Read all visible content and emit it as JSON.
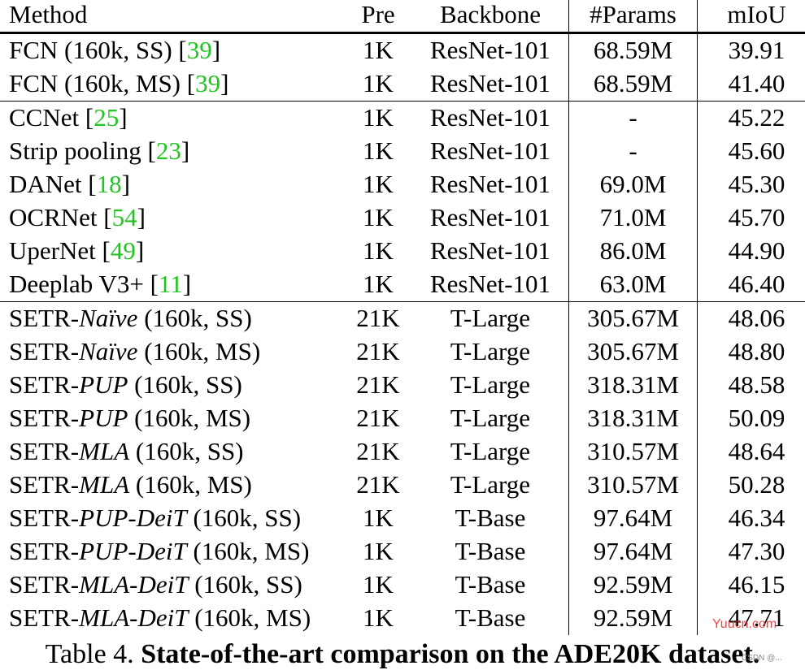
{
  "headers": {
    "method": "Method",
    "pre": "Pre",
    "backbone": "Backbone",
    "params": "#Params",
    "miou": "mIoU"
  },
  "rows": [
    {
      "pre_text": "FCN (160k, SS) [",
      "ital": "",
      "post_text": "",
      "cite": "39",
      "close": "]",
      "pre": "1K",
      "backbone": "ResNet-101",
      "params": "68.59M",
      "miou": "39.91",
      "bold": false,
      "group_start": false
    },
    {
      "pre_text": "FCN (160k, MS) [",
      "ital": "",
      "post_text": "",
      "cite": "39",
      "close": "]",
      "pre": "1K",
      "backbone": "ResNet-101",
      "params": "68.59M",
      "miou": "41.40",
      "bold": false,
      "group_start": false
    },
    {
      "pre_text": "CCNet [",
      "ital": "",
      "post_text": "",
      "cite": "25",
      "close": "]",
      "pre": "1K",
      "backbone": "ResNet-101",
      "params": "-",
      "miou": "45.22",
      "bold": false,
      "group_start": true
    },
    {
      "pre_text": "Strip pooling [",
      "ital": "",
      "post_text": "",
      "cite": "23",
      "close": "]",
      "pre": "1K",
      "backbone": "ResNet-101",
      "params": "-",
      "miou": "45.60",
      "bold": false,
      "group_start": false
    },
    {
      "pre_text": "DANet [",
      "ital": "",
      "post_text": "",
      "cite": "18",
      "close": "]",
      "pre": "1K",
      "backbone": "ResNet-101",
      "params": "69.0M",
      "miou": "45.30",
      "bold": false,
      "group_start": false
    },
    {
      "pre_text": "OCRNet [",
      "ital": "",
      "post_text": "",
      "cite": "54",
      "close": "]",
      "pre": "1K",
      "backbone": "ResNet-101",
      "params": "71.0M",
      "miou": "45.70",
      "bold": false,
      "group_start": false
    },
    {
      "pre_text": "UperNet [",
      "ital": "",
      "post_text": "",
      "cite": "49",
      "close": "]",
      "pre": "1K",
      "backbone": "ResNet-101",
      "params": "86.0M",
      "miou": "44.90",
      "bold": false,
      "group_start": false
    },
    {
      "pre_text": "Deeplab V3+ [",
      "ital": "",
      "post_text": "",
      "cite": "11",
      "close": "]",
      "pre": "1K",
      "backbone": "ResNet-101",
      "params": "63.0M",
      "miou": "46.40",
      "bold": false,
      "group_start": false
    },
    {
      "pre_text": "SETR-",
      "ital": "Naïve",
      "post_text": " (160k, SS)",
      "cite": "",
      "close": "",
      "pre": "21K",
      "backbone": "T-Large",
      "params": "305.67M",
      "miou": "48.06",
      "bold": false,
      "group_start": true
    },
    {
      "pre_text": "SETR-",
      "ital": "Naïve",
      "post_text": " (160k, MS)",
      "cite": "",
      "close": "",
      "pre": "21K",
      "backbone": "T-Large",
      "params": "305.67M",
      "miou": "48.80",
      "bold": false,
      "group_start": false
    },
    {
      "pre_text": "SETR-",
      "ital": "PUP",
      "post_text": " (160k, SS)",
      "cite": "",
      "close": "",
      "pre": "21K",
      "backbone": "T-Large",
      "params": "318.31M",
      "miou": "48.58",
      "bold": false,
      "group_start": false
    },
    {
      "pre_text": "SETR-",
      "ital": "PUP",
      "post_text": " (160k, MS)",
      "cite": "",
      "close": "",
      "pre": "21K",
      "backbone": "T-Large",
      "params": "318.31M",
      "miou": "50.09",
      "bold": false,
      "group_start": false
    },
    {
      "pre_text": "SETR-",
      "ital": "MLA",
      "post_text": " (160k, SS)",
      "cite": "",
      "close": "",
      "pre": "21K",
      "backbone": "T-Large",
      "params": "310.57M",
      "miou": "48.64",
      "bold": false,
      "group_start": false
    },
    {
      "pre_text": "SETR-",
      "ital": "MLA",
      "post_text": " (160k, MS)",
      "cite": "",
      "close": "",
      "pre": "21K",
      "backbone": "T-Large",
      "params": "310.57M",
      "miou": "50.28",
      "bold": true,
      "group_start": false
    },
    {
      "pre_text": "SETR-",
      "ital": "PUP-DeiT",
      "post_text": " (160k, SS)",
      "cite": "",
      "close": "",
      "pre": "1K",
      "backbone": "T-Base",
      "params": "97.64M",
      "miou": "46.34",
      "bold": false,
      "group_start": false
    },
    {
      "pre_text": "SETR-",
      "ital": "PUP-DeiT",
      "post_text": " (160k, MS)",
      "cite": "",
      "close": "",
      "pre": "1K",
      "backbone": "T-Base",
      "params": "97.64M",
      "miou": "47.30",
      "bold": false,
      "group_start": false
    },
    {
      "pre_text": "SETR-",
      "ital": "MLA-DeiT",
      "post_text": " (160k, SS)",
      "cite": "",
      "close": "",
      "pre": "1K",
      "backbone": "T-Base",
      "params": "92.59M",
      "miou": "46.15",
      "bold": false,
      "group_start": false
    },
    {
      "pre_text": "SETR-",
      "ital": "MLA-DeiT",
      "post_text": " (160k, MS)",
      "cite": "",
      "close": "",
      "pre": "1K",
      "backbone": "T-Base",
      "params": "92.59M",
      "miou": "47.71",
      "bold": false,
      "group_start": false
    }
  ],
  "caption": {
    "label": "Table 4.",
    "text": "State-of-the-art comparison on the ADE20K dataset."
  },
  "watermark": {
    "text": "Yuucn.com",
    "sub": "CSDN @..."
  },
  "colors": {
    "citation": "#22c422",
    "watermark": "#e02a2a"
  }
}
